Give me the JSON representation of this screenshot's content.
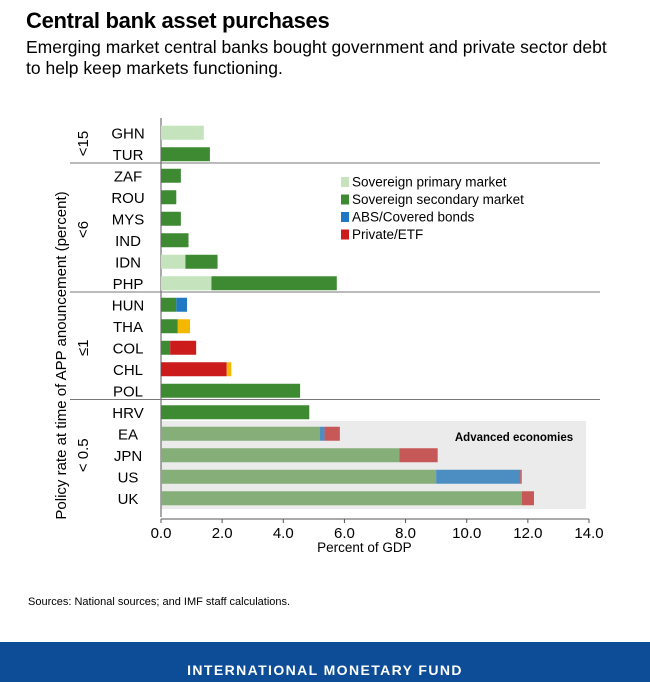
{
  "header": {
    "title": "Central bank asset purchases",
    "subtitle": "Emerging market central banks bought government and private sector debt to help keep markets functioning."
  },
  "chart_data": {
    "type": "bar",
    "orientation": "horizontal",
    "stacked": true,
    "xlabel": "Percent of GDP",
    "ylabel": "Policy rate at time of APP anouncement (percent)",
    "xlim": [
      0,
      14
    ],
    "xticks": [
      "0.0",
      "2.0",
      "4.0",
      "6.0",
      "8.0",
      "10.0",
      "12.0",
      "14.0"
    ],
    "groups": [
      "<15",
      "<6",
      "≤1",
      "< 0.5"
    ],
    "series_names": [
      "Sovereign primary market",
      "Sovereign secondary market",
      "ABS/Covered bonds",
      "Private/ETF"
    ],
    "colors": {
      "primary": "#c5e3bd",
      "secondary": "#3e8a33",
      "abs": "#1f78c1",
      "private": "#cc1b1b",
      "other": "#f5b800",
      "adv_secondary": "#86ae78",
      "adv_abs": "#4d8ec2",
      "adv_private": "#c75858",
      "adv_background": "#ebebeb"
    },
    "bars": [
      {
        "label": "GHN",
        "group": 0,
        "segments": [
          {
            "k": "primary",
            "v": 1.4
          }
        ]
      },
      {
        "label": "TUR",
        "group": 0,
        "segments": [
          {
            "k": "secondary",
            "v": 1.6
          }
        ]
      },
      {
        "label": "ZAF",
        "group": 1,
        "segments": [
          {
            "k": "secondary",
            "v": 0.65
          }
        ]
      },
      {
        "label": "ROU",
        "group": 1,
        "segments": [
          {
            "k": "secondary",
            "v": 0.5
          }
        ]
      },
      {
        "label": "MYS",
        "group": 1,
        "segments": [
          {
            "k": "secondary",
            "v": 0.65
          }
        ]
      },
      {
        "label": "IND",
        "group": 1,
        "segments": [
          {
            "k": "secondary",
            "v": 0.9
          }
        ]
      },
      {
        "label": "IDN",
        "group": 1,
        "segments": [
          {
            "k": "primary",
            "v": 0.8
          },
          {
            "k": "secondary",
            "v": 1.05
          }
        ]
      },
      {
        "label": "PHP",
        "group": 1,
        "segments": [
          {
            "k": "primary",
            "v": 1.65
          },
          {
            "k": "secondary",
            "v": 4.1
          }
        ]
      },
      {
        "label": "HUN",
        "group": 2,
        "segments": [
          {
            "k": "secondary",
            "v": 0.5
          },
          {
            "k": "abs",
            "v": 0.35
          }
        ]
      },
      {
        "label": "THA",
        "group": 2,
        "segments": [
          {
            "k": "secondary",
            "v": 0.55
          },
          {
            "k": "other",
            "v": 0.4
          }
        ]
      },
      {
        "label": "COL",
        "group": 2,
        "segments": [
          {
            "k": "secondary",
            "v": 0.3
          },
          {
            "k": "private",
            "v": 0.85
          }
        ]
      },
      {
        "label": "CHL",
        "group": 2,
        "segments": [
          {
            "k": "private",
            "v": 2.15
          },
          {
            "k": "other",
            "v": 0.15
          }
        ]
      },
      {
        "label": "POL",
        "group": 2,
        "segments": [
          {
            "k": "secondary",
            "v": 4.55
          }
        ]
      },
      {
        "label": "HRV",
        "group": 3,
        "segments": [
          {
            "k": "secondary",
            "v": 4.85
          }
        ]
      },
      {
        "label": "EA",
        "group": 3,
        "segments": [
          {
            "k": "adv_secondary",
            "v": 5.2
          },
          {
            "k": "adv_abs",
            "v": 0.15
          },
          {
            "k": "adv_private",
            "v": 0.5
          }
        ]
      },
      {
        "label": "JPN",
        "group": 3,
        "segments": [
          {
            "k": "adv_secondary",
            "v": 7.8
          },
          {
            "k": "adv_private",
            "v": 1.25
          }
        ]
      },
      {
        "label": "US",
        "group": 3,
        "segments": [
          {
            "k": "adv_secondary",
            "v": 9.0
          },
          {
            "k": "adv_abs",
            "v": 2.75
          },
          {
            "k": "adv_private",
            "v": 0.05
          }
        ]
      },
      {
        "label": "UK",
        "group": 3,
        "segments": [
          {
            "k": "adv_secondary",
            "v": 11.8
          },
          {
            "k": "adv_private",
            "v": 0.4
          }
        ]
      }
    ],
    "legend": [
      {
        "label": "Sovereign primary market",
        "k": "primary"
      },
      {
        "label": "Sovereign secondary market",
        "k": "secondary"
      },
      {
        "label": "ABS/Covered bonds",
        "k": "abs"
      },
      {
        "label": "Private/ETF",
        "k": "private"
      }
    ],
    "annotation": "Advanced economies"
  },
  "source": "Sources: National sources; and IMF staff calculations.",
  "footer": "INTERNATIONAL MONETARY FUND"
}
